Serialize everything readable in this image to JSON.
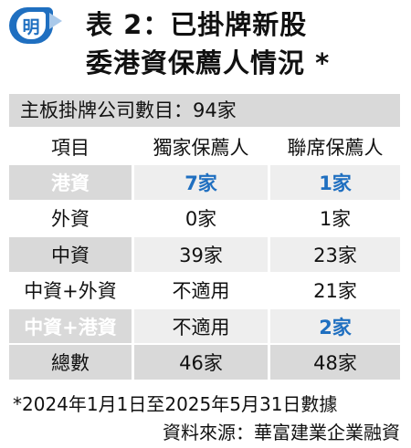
{
  "header": {
    "badge": "明",
    "title_line1": "表 2：已掛牌新股",
    "title_line2": "委港資保薦人情況 *"
  },
  "summary": "主板掛牌公司數目：94家",
  "table": {
    "columns": [
      "項目",
      "獨家保薦人",
      "聯席保薦人"
    ],
    "rows": [
      {
        "item": "港資",
        "sole": "7家",
        "joint": "1家"
      },
      {
        "item": "外資",
        "sole": "0家",
        "joint": "1家"
      },
      {
        "item": "中資",
        "sole": "39家",
        "joint": "23家"
      },
      {
        "item": "中資+外資",
        "sole": "不適用",
        "joint": "21家"
      },
      {
        "item": "中資+港資",
        "sole": "不適用",
        "joint": "2家"
      },
      {
        "item": "總數",
        "sole": "46家",
        "joint": "48家"
      }
    ]
  },
  "footer": {
    "note": "*2024年1月1日至2025年5月31日數據",
    "source": "資料來源：華富建業企業融資"
  },
  "colors": {
    "accent_blue": "#1f6fc0",
    "row_grey": "#eeeeee",
    "dark_grey": "#d9d9d9"
  }
}
